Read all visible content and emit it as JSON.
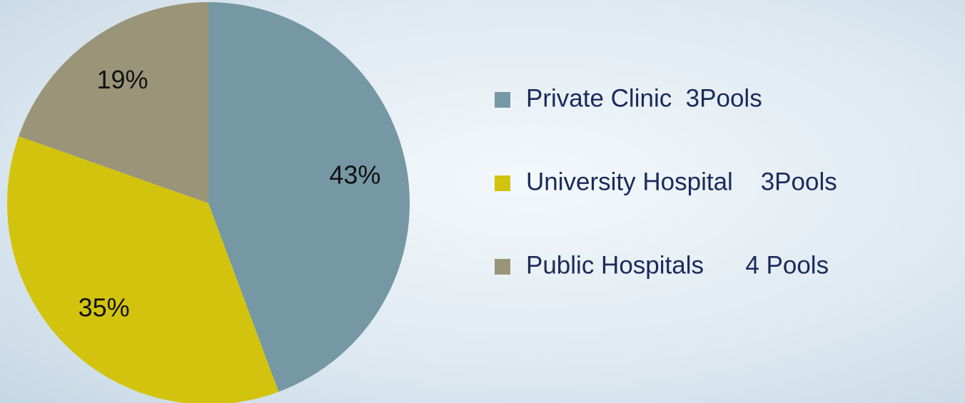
{
  "chart_data": {
    "type": "pie",
    "categories": [
      "Private Clinic  3Pools",
      "University Hospital    3Pools",
      "Public Hospitals      4 Pools"
    ],
    "values": [
      43,
      35,
      19
    ],
    "value_labels": [
      "43%",
      "35%",
      "19%"
    ],
    "colors": [
      "#7598a4",
      "#d2c40e",
      "#9a9579"
    ],
    "legend": "right"
  }
}
